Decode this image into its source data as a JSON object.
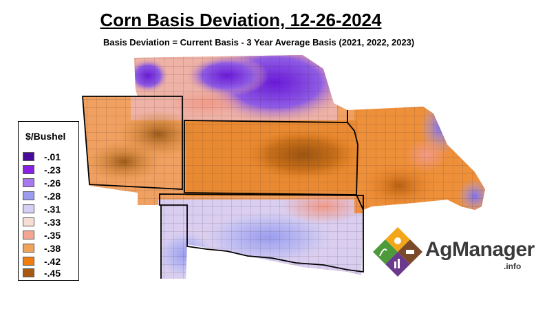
{
  "title": "Corn Basis Deviation, 12-26-2024",
  "subtitle": "Basis Deviation = Current Basis - 3 Year Average Basis (2021, 2022, 2023)",
  "legend": {
    "title": "$/Bushel",
    "items": [
      {
        "label": "-.01",
        "color": "#4b0a9e"
      },
      {
        "label": "-.23",
        "color": "#8a1fe6"
      },
      {
        "label": "-.26",
        "color": "#a878ee"
      },
      {
        "label": "-.28",
        "color": "#9a9cf0"
      },
      {
        "label": "-.31",
        "color": "#d6cff4"
      },
      {
        "label": "-.33",
        "color": "#f7ded2"
      },
      {
        "label": "-.35",
        "color": "#f5a58f"
      },
      {
        "label": "-.38",
        "color": "#f1a35a"
      },
      {
        "label": "-.42",
        "color": "#ef7d0f"
      },
      {
        "label": "-.45",
        "color": "#a85a12"
      }
    ]
  },
  "logo": {
    "name": "AgManager",
    "suffix": ".info"
  }
}
